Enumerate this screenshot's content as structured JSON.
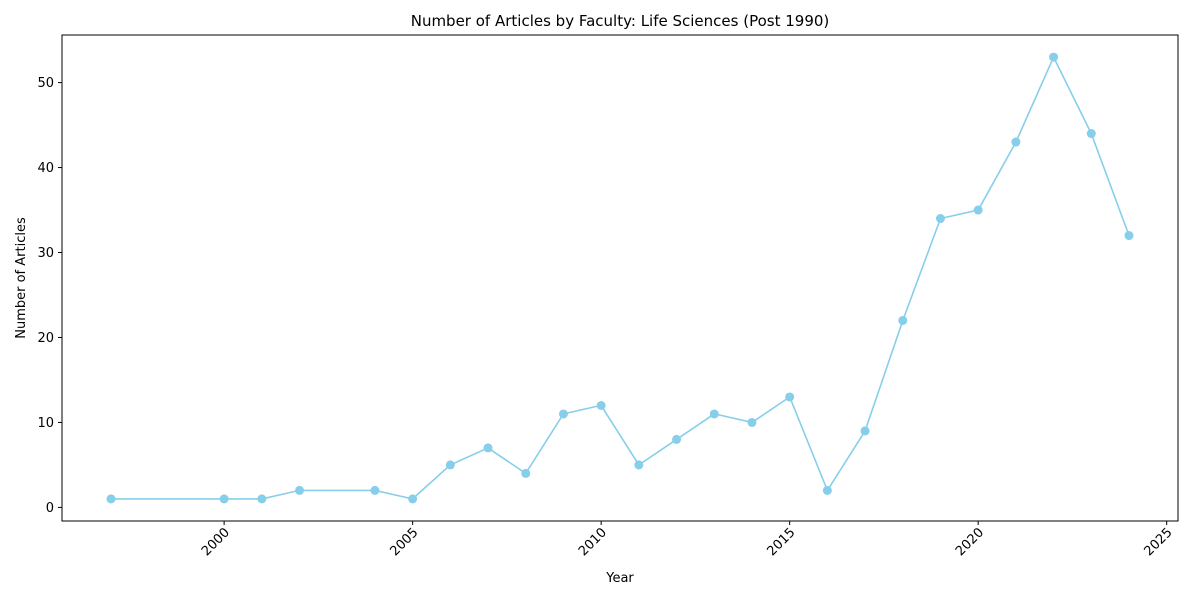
{
  "chart_data": {
    "type": "line",
    "title": "Number of Articles by Faculty: Life Sciences (Post 1990)",
    "xlabel": "Year",
    "ylabel": "Number of Articles",
    "xlim": [
      1995.7,
      2025.3
    ],
    "ylim": [
      -1.6,
      55.6
    ],
    "xticks": [
      2000,
      2005,
      2010,
      2015,
      2020,
      2025
    ],
    "yticks": [
      0,
      10,
      20,
      30,
      40,
      50
    ],
    "xtick_rotation": 45,
    "grid": false,
    "line_color": "#87CEEB",
    "marker": "circle",
    "series": [
      {
        "x": [
          1997,
          2000,
          2001,
          2002,
          2004,
          2005,
          2006,
          2007,
          2008,
          2009,
          2010,
          2011,
          2012,
          2013,
          2014,
          2015,
          2016,
          2017,
          2018,
          2019,
          2020,
          2021,
          2022,
          2023,
          2024
        ],
        "values": [
          1,
          1,
          1,
          2,
          2,
          1,
          5,
          7,
          4,
          11,
          12,
          5,
          8,
          11,
          10,
          13,
          2,
          9,
          22,
          34,
          35,
          43,
          53,
          44,
          32
        ]
      }
    ]
  }
}
